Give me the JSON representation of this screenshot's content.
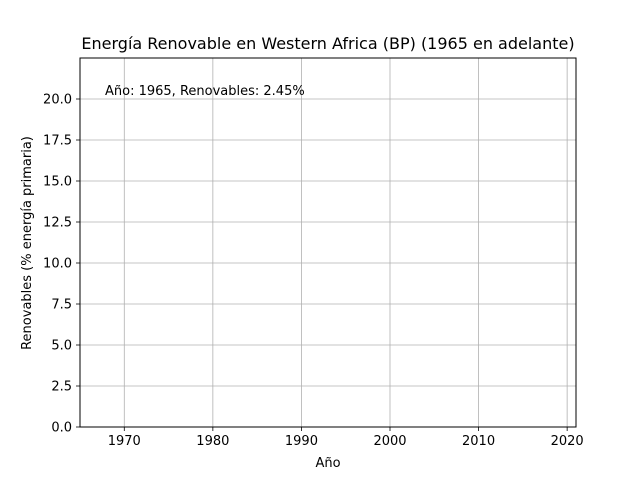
{
  "chart_data": {
    "type": "line",
    "title": "Energía Renovable en Western Africa (BP) (1965 en adelante)",
    "xlabel": "Año",
    "ylabel": "Renovables (% energía primaria)",
    "xlim": [
      1965,
      2021
    ],
    "ylim": [
      0,
      22.5
    ],
    "grid": true,
    "legend": "none",
    "x_ticks": [
      1970,
      1980,
      1990,
      2000,
      2010,
      2020
    ],
    "y_ticks": [
      0.0,
      2.5,
      5.0,
      7.5,
      10.0,
      12.5,
      15.0,
      17.5,
      20.0
    ],
    "y_tick_labels": [
      "0.0",
      "2.5",
      "5.0",
      "7.5",
      "10.0",
      "12.5",
      "15.0",
      "17.5",
      "20.0"
    ],
    "annotation": "Año: 1965, Renovables: 2.45%",
    "series": [
      {
        "x": [
          1965
        ],
        "values": [
          2.45
        ]
      }
    ]
  }
}
